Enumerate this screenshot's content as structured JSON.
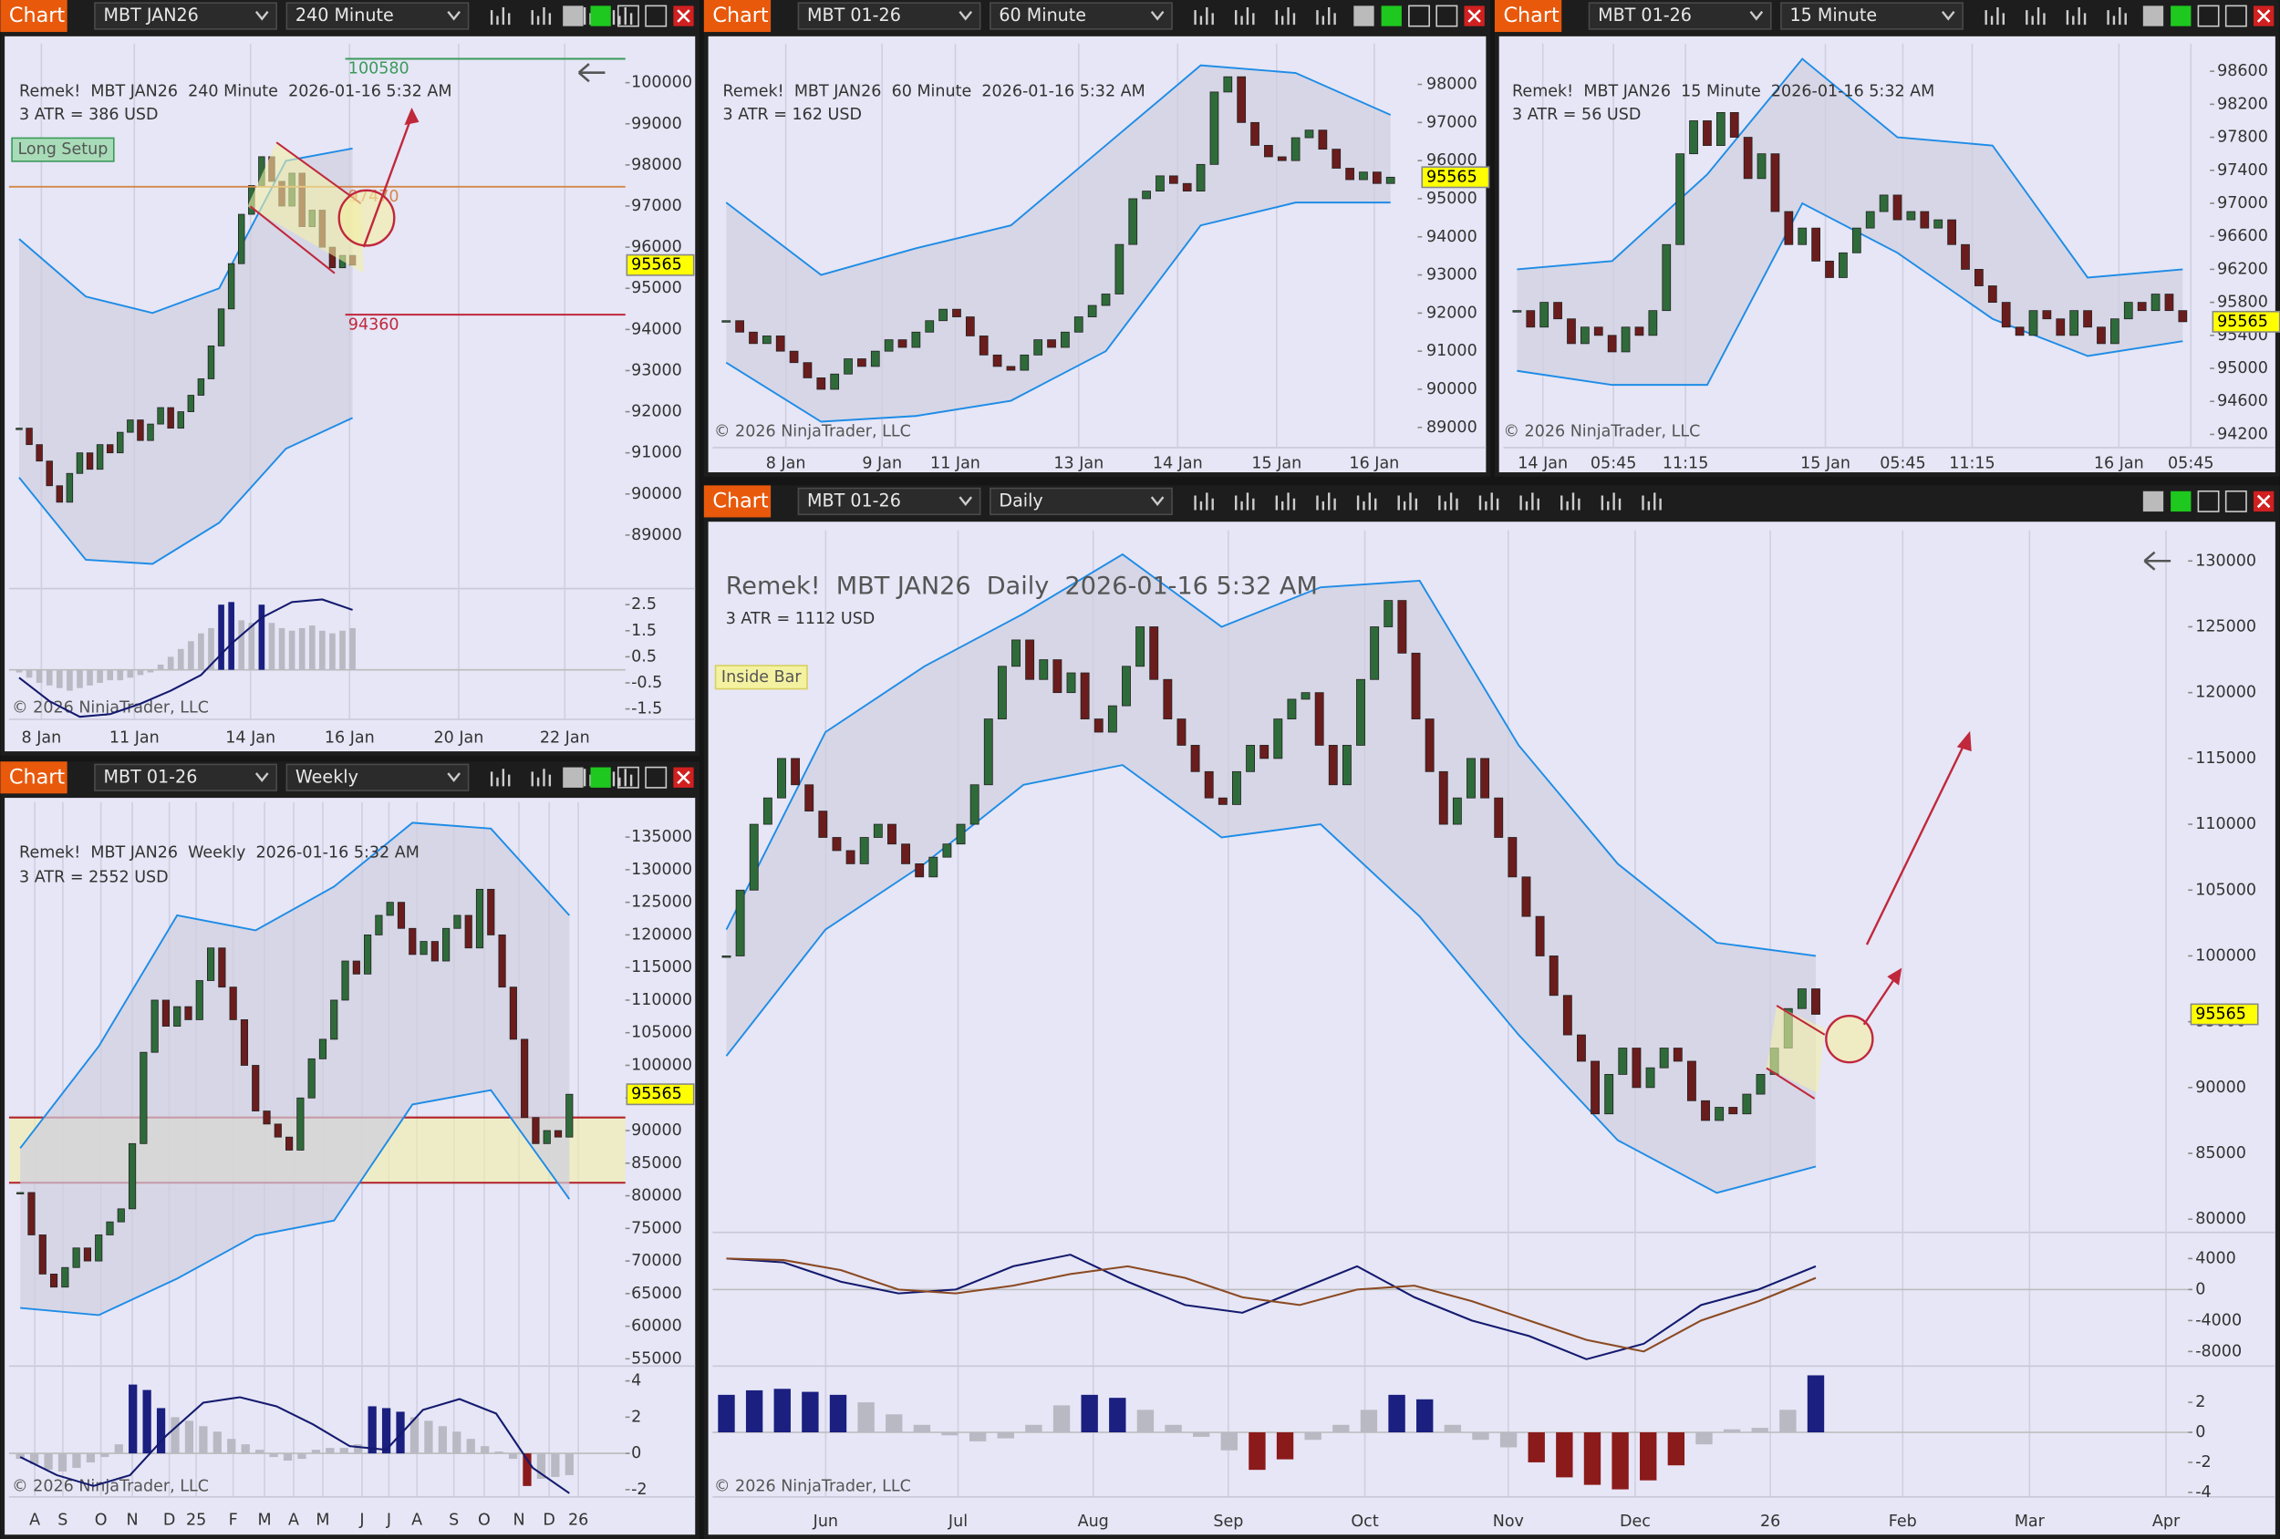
{
  "windows": [
    {
      "tab": "Chart",
      "instrument": "MBT JAN26",
      "interval": "240 Minute",
      "heading": "Remek!  MBT JAN26  240 Minute  2026-01-16 5:32 AM",
      "atr": "3 ATR = 386 USD",
      "tag": "Long Setup",
      "copyright": "© 2026 NinjaTrader, LLC",
      "price": {
        "type": "candlestick",
        "closes": [
          91600,
          91200,
          90800,
          90200,
          89800,
          90500,
          91000,
          90600,
          91200,
          91000,
          91500,
          91800,
          91300,
          91700,
          92100,
          91600,
          92000,
          92400,
          92800,
          93600,
          94500,
          95600,
          96800,
          97500,
          98200,
          97600,
          97000,
          97800,
          96500,
          96900,
          96000,
          95500,
          95800,
          95565
        ],
        "upper": [
          96200,
          94800,
          94400,
          95000,
          98100,
          98400
        ],
        "lower": [
          90400,
          88400,
          88300,
          89300,
          91100,
          91850
        ],
        "xlim": [
          -1,
          60
        ],
        "ylim": [
          87700,
          100950
        ],
        "yticks": [
          89000,
          90000,
          91000,
          92000,
          93000,
          94000,
          95000,
          96000,
          97000,
          98000,
          99000,
          100000
        ],
        "xticks": [
          {
            "value": 2.2,
            "label": "8 Jan"
          },
          {
            "value": 11.4,
            "label": "11 Jan"
          },
          {
            "value": 22.9,
            "label": "14 Jan"
          },
          {
            "value": 32.7,
            "label": "16 Jan"
          },
          {
            "value": 43.5,
            "label": "20 Jan"
          },
          {
            "value": 54,
            "label": "22 Jan"
          }
        ],
        "last": 95565,
        "levels": [
          {
            "value": 100580,
            "color": "#3a9a5a"
          },
          {
            "value": 97470,
            "color": "#d4874a"
          },
          {
            "value": 94360,
            "color": "#c0283c"
          }
        ]
      },
      "oscillators": [
        {
          "ylim": [
            -1.9,
            2.95
          ],
          "yticks": [
            2.5,
            1.5,
            0.5,
            -0.5,
            -1.5
          ],
          "histogram": [
            -0.1,
            -0.3,
            -0.5,
            -0.6,
            -0.7,
            -0.8,
            -0.7,
            -0.6,
            -0.5,
            -0.4,
            -0.4,
            -0.3,
            -0.2,
            -0.1,
            0.2,
            0.5,
            0.8,
            1.1,
            1.4,
            1.6,
            2.5,
            2.6,
            1.9,
            1.8,
            2.5,
            1.8,
            1.6,
            1.5,
            1.6,
            1.7,
            1.5,
            1.4,
            1.5,
            1.6
          ],
          "lines": [
            {
              "color": "#141a6e",
              "values": [
                -0.3,
                -1.2,
                -1.8,
                -1.7,
                -1.3,
                -0.8,
                -0.2,
                1.0,
                2.0,
                2.6,
                2.7,
                2.3
              ]
            }
          ]
        }
      ]
    },
    {
      "tab": "Chart",
      "instrument": "MBT 01-26",
      "interval": "60 Minute",
      "heading": "Remek!  MBT JAN26  60 Minute  2026-01-16 5:32 AM",
      "atr": "3 ATR = 162 USD",
      "copyright": "© 2026 NinjaTrader, LLC",
      "price": {
        "type": "candlestick",
        "closes": [
          91800,
          91500,
          91200,
          91400,
          91000,
          90700,
          90300,
          90000,
          90400,
          90800,
          90600,
          91000,
          91300,
          91100,
          91500,
          91800,
          92100,
          91900,
          91400,
          90900,
          90600,
          90500,
          90900,
          91300,
          91100,
          91500,
          91900,
          92200,
          92500,
          93800,
          95000,
          95200,
          95600,
          95400,
          95200,
          95900,
          97800,
          98200,
          97000,
          96400,
          96100,
          96000,
          96600,
          96800,
          96300,
          95800,
          95500,
          95700,
          95400,
          95565
        ],
        "upper": [
          94900,
          93000,
          93700,
          94300,
          96400,
          98500,
          98300,
          97200
        ],
        "lower": [
          90700,
          89150,
          89300,
          89700,
          91000,
          94300,
          94900,
          94900
        ],
        "xlim": [
          -1,
          51
        ],
        "ylim": [
          88470,
          99070
        ],
        "yticks": [
          89000,
          90000,
          91000,
          92000,
          93000,
          94000,
          95000,
          96000,
          97000,
          98000
        ],
        "xticks": [
          {
            "value": 4.4,
            "label": "8 Jan"
          },
          {
            "value": 11.5,
            "label": "9 Jan"
          },
          {
            "value": 16.9,
            "label": "11 Jan"
          },
          {
            "value": 26.0,
            "label": "13 Jan"
          },
          {
            "value": 33.3,
            "label": "14 Jan"
          },
          {
            "value": 40.6,
            "label": "15 Jan"
          },
          {
            "value": 47.8,
            "label": "16 Jan"
          }
        ],
        "last": 95565
      },
      "oscillators": []
    },
    {
      "tab": "Chart",
      "instrument": "MBT 01-26",
      "interval": "15 Minute",
      "heading": "Remek!  MBT JAN26  15 Minute  2026-01-16 5:32 AM",
      "atr": "3 ATR = 56 USD",
      "copyright": "© 2026 NinjaTrader, LLC",
      "price": {
        "type": "candlestick",
        "closes": [
          95700,
          95500,
          95800,
          95600,
          95300,
          95500,
          95400,
          95200,
          95500,
          95400,
          95700,
          96500,
          97600,
          98000,
          97700,
          98100,
          97800,
          97300,
          97600,
          96900,
          96500,
          96700,
          96300,
          96100,
          96400,
          96700,
          96900,
          97100,
          96800,
          96900,
          96700,
          96800,
          96500,
          96200,
          96000,
          95800,
          95500,
          95400,
          95700,
          95600,
          95400,
          95700,
          95500,
          95300,
          95600,
          95800,
          95700,
          95900,
          95700,
          95565
        ],
        "upper": [
          96200,
          96300,
          97350,
          98750,
          97800,
          97700,
          96100,
          96200
        ],
        "lower": [
          94970,
          94800,
          94800,
          97000,
          96400,
          95600,
          95150,
          95330
        ],
        "xlim": [
          -1,
          51
        ],
        "ylim": [
          94040,
          98935
        ],
        "yticks": [
          94200,
          94600,
          95000,
          95400,
          95800,
          96200,
          96600,
          97000,
          97400,
          97800,
          98200,
          98600
        ],
        "xticks": [
          {
            "value": 1.9,
            "label": "14 Jan"
          },
          {
            "value": 7.1,
            "label": "05:45"
          },
          {
            "value": 12.4,
            "label": "11:15"
          },
          {
            "value": 22.7,
            "label": "15 Jan"
          },
          {
            "value": 28.4,
            "label": "05:45"
          },
          {
            "value": 33.5,
            "label": "11:15"
          },
          {
            "value": 44.3,
            "label": "16 Jan"
          },
          {
            "value": 49.6,
            "label": "05:45"
          }
        ],
        "last": 95565
      },
      "oscillators": []
    },
    {
      "tab": "Chart",
      "instrument": "MBT 01-26",
      "interval": "Weekly",
      "heading": "Remek!  MBT JAN26  Weekly  2026-01-16 5:32 AM",
      "atr": "3 ATR = 2552 USD",
      "copyright": "© 2026 NinjaTrader, LLC",
      "price": {
        "type": "candlestick",
        "closes": [
          80500,
          74000,
          68000,
          66000,
          69000,
          72000,
          70000,
          74000,
          76000,
          78000,
          88000,
          102000,
          110000,
          106000,
          109000,
          107000,
          113000,
          118000,
          112000,
          107000,
          100000,
          93000,
          91000,
          89000,
          87000,
          95000,
          101000,
          104000,
          110000,
          116000,
          114000,
          120000,
          123000,
          125000,
          121000,
          117000,
          119000,
          116000,
          121000,
          123000,
          118000,
          127000,
          120000,
          112000,
          104000,
          92000,
          88000,
          90000,
          89000,
          95565
        ],
        "upper": [
          87300,
          102900,
          123000,
          120700,
          127400,
          137200,
          136300,
          123000
        ],
        "lower": [
          62800,
          61700,
          67300,
          73900,
          76200,
          94000,
          96200,
          79500
        ],
        "xlim": [
          -1,
          54
        ],
        "ylim": [
          53890,
          140350
        ],
        "yticks": [
          55000,
          60000,
          65000,
          70000,
          75000,
          80000,
          85000,
          90000,
          95000,
          100000,
          105000,
          110000,
          115000,
          120000,
          125000,
          130000,
          135000
        ],
        "xticks": [
          {
            "value": 1.3,
            "label": "A"
          },
          {
            "value": 3.8,
            "label": "S"
          },
          {
            "value": 7.2,
            "label": "O"
          },
          {
            "value": 10.0,
            "label": "N"
          },
          {
            "value": 13.3,
            "label": "D"
          },
          {
            "value": 15.7,
            "label": "25"
          },
          {
            "value": 19.0,
            "label": "F"
          },
          {
            "value": 21.8,
            "label": "M"
          },
          {
            "value": 24.4,
            "label": "A"
          },
          {
            "value": 27.0,
            "label": "M"
          },
          {
            "value": 30.5,
            "label": "J"
          },
          {
            "value": 32.9,
            "label": "J"
          },
          {
            "value": 35.4,
            "label": "A"
          },
          {
            "value": 38.7,
            "label": "S"
          },
          {
            "value": 41.4,
            "label": "O"
          },
          {
            "value": 44.5,
            "label": "N"
          },
          {
            "value": 47.2,
            "label": "D"
          },
          {
            "value": 49.8,
            "label": "26"
          }
        ],
        "last": 95565,
        "zone": [
          82000,
          92000
        ]
      },
      "oscillators": [
        {
          "ylim": [
            -2.4,
            4.5
          ],
          "yticks": [
            4,
            2,
            0,
            -2
          ],
          "histogram": [
            -0.3,
            -0.6,
            -0.9,
            -1.0,
            -0.8,
            -0.5,
            -0.2,
            0.5,
            3.8,
            3.5,
            2.5,
            2.0,
            1.8,
            1.5,
            1.2,
            0.8,
            0.5,
            0.2,
            -0.2,
            -0.4,
            -0.3,
            0.2,
            0.3,
            0.3,
            0.5,
            2.6,
            2.5,
            2.3,
            2.0,
            1.8,
            1.5,
            1.2,
            0.8,
            0.4,
            0.1,
            -0.3,
            -1.8,
            -1.4,
            -1.3,
            -1.2
          ],
          "lines": [
            {
              "color": "#141a6e",
              "values": [
                -0.2,
                -1.2,
                -1.8,
                -1.2,
                1.0,
                2.8,
                3.1,
                2.6,
                1.6,
                0.4,
                0.2,
                2.4,
                3.0,
                2.2,
                -0.8,
                -2.2
              ]
            }
          ]
        }
      ]
    },
    {
      "tab": "Chart",
      "instrument": "MBT 01-26",
      "interval": "Daily",
      "heading": "Remek!  MBT JAN26  Daily  2026-01-16 5:32 AM",
      "atr": "3 ATR = 1112 USD",
      "tag": "Inside Bar",
      "copyright": "© 2026 NinjaTrader, LLC",
      "price": {
        "type": "candlestick",
        "closes": [
          100000,
          105000,
          110000,
          112000,
          115000,
          113000,
          111000,
          109000,
          108000,
          107000,
          109000,
          110000,
          108500,
          107000,
          106000,
          107500,
          108500,
          110000,
          113000,
          118000,
          122000,
          124000,
          121000,
          122500,
          120000,
          121500,
          118000,
          117000,
          119000,
          122000,
          125000,
          121000,
          118000,
          116000,
          114000,
          112000,
          111500,
          114000,
          116000,
          115000,
          118000,
          119500,
          120000,
          116000,
          113000,
          116000,
          121000,
          125000,
          127000,
          123000,
          118000,
          114000,
          110000,
          112000,
          115000,
          112000,
          109000,
          106000,
          103000,
          100000,
          97000,
          94000,
          92000,
          88000,
          91000,
          93000,
          90000,
          91500,
          93000,
          92000,
          89000,
          87500,
          88500,
          88000,
          89500,
          91000,
          93000,
          96000,
          97500,
          95565
        ],
        "upper": [
          102000,
          117000,
          122000,
          126000,
          130500,
          125000,
          128000,
          128500,
          116000,
          107000,
          101000,
          100000
        ],
        "lower": [
          92400,
          102000,
          107000,
          113000,
          114500,
          109000,
          110000,
          103000,
          94000,
          86000,
          82000,
          84000
        ],
        "xlim": [
          -1,
          106
        ],
        "ylim": [
          79000,
          132320
        ],
        "yticks": [
          80000,
          85000,
          90000,
          95000,
          100000,
          105000,
          110000,
          115000,
          120000,
          125000,
          130000
        ],
        "xticks": [
          {
            "value": 7.2,
            "label": "Jun"
          },
          {
            "value": 16.8,
            "label": "Jul"
          },
          {
            "value": 26.6,
            "label": "Aug"
          },
          {
            "value": 36.4,
            "label": "Sep"
          },
          {
            "value": 46.3,
            "label": "Oct"
          },
          {
            "value": 56.7,
            "label": "Nov"
          },
          {
            "value": 65.9,
            "label": "Dec"
          },
          {
            "value": 75.7,
            "label": "26"
          },
          {
            "value": 85.3,
            "label": "Feb"
          },
          {
            "value": 94.5,
            "label": "Mar"
          },
          {
            "value": 104.4,
            "label": "Apr"
          }
        ],
        "last": 95565
      },
      "oscillators": [
        {
          "ylim": [
            -9880,
            6630
          ],
          "yticks": [
            4000,
            0,
            -4000,
            -8000
          ],
          "histogram": [],
          "lines": [
            {
              "color": "#141a6e",
              "values": [
                4000,
                3500,
                1000,
                -500,
                0,
                3000,
                4500,
                1000,
                -2000,
                -3000,
                0,
                3000,
                -1000,
                -4000,
                -6000,
                -9000,
                -7000,
                -2000,
                0,
                3000
              ]
            },
            {
              "color": "#8b4a22",
              "values": [
                4000,
                3800,
                2500,
                0,
                -500,
                500,
                2000,
                3000,
                1500,
                -1000,
                -2000,
                0,
                500,
                -1500,
                -4000,
                -6500,
                -8000,
                -4000,
                -1500,
                1500
              ]
            }
          ]
        },
        {
          "ylim": [
            -4.3,
            4.03
          ],
          "yticks": [
            2,
            0,
            -2,
            -4
          ],
          "histogram": [
            2.5,
            2.8,
            2.9,
            2.7,
            2.5,
            2,
            1.2,
            0.5,
            -0.2,
            -0.6,
            -0.4,
            0.5,
            1.8,
            2.5,
            2.3,
            1.5,
            0.5,
            -0.3,
            -1.2,
            -2.5,
            -1.8,
            -0.5,
            0.5,
            1.5,
            2.5,
            2.2,
            0.5,
            -0.5,
            -1.0,
            -2.0,
            -3.0,
            -3.5,
            -3.8,
            -3.2,
            -2.2,
            -0.8,
            0.2,
            0.3,
            1.5,
            3.8
          ],
          "lines": []
        }
      ]
    }
  ]
}
